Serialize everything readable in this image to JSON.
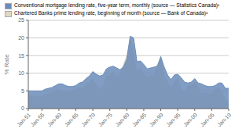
{
  "chart_data": {
    "type": "area",
    "ylabel": "% Rate",
    "x": [
      1951,
      1952,
      1953,
      1954,
      1955,
      1956,
      1957,
      1958,
      1959,
      1960,
      1961,
      1962,
      1963,
      1964,
      1965,
      1966,
      1967,
      1968,
      1969,
      1970,
      1971,
      1972,
      1973,
      1974,
      1975,
      1976,
      1977,
      1978,
      1979,
      1980,
      1981,
      1982,
      1983,
      1984,
      1985,
      1986,
      1987,
      1988,
      1989,
      1990,
      1991,
      1992,
      1993,
      1994,
      1995,
      1996,
      1997,
      1998,
      1999,
      2000,
      2001,
      2002,
      2003,
      2004,
      2005,
      2006,
      2007,
      2008,
      2009,
      2010
    ],
    "series": [
      {
        "name": "Conventional mortgage lending rate, five-year term, monthly (source — Statistics Canada)¹",
        "color": "#6b8cba",
        "values": [
          5.0,
          5.0,
          5.0,
          5.0,
          5.0,
          5.5,
          5.75,
          6.0,
          6.5,
          7.0,
          7.0,
          6.5,
          6.25,
          6.25,
          6.5,
          7.25,
          7.5,
          8.5,
          9.25,
          10.5,
          9.75,
          9.25,
          9.5,
          11.25,
          11.75,
          12.0,
          11.5,
          11.0,
          11.75,
          14.0,
          20.5,
          20.0,
          13.25,
          13.5,
          12.5,
          11.25,
          11.5,
          11.75,
          12.0,
          14.75,
          11.75,
          9.5,
          8.25,
          9.5,
          9.75,
          8.75,
          7.5,
          7.25,
          7.5,
          8.5,
          7.25,
          7.0,
          6.5,
          6.25,
          6.25,
          6.5,
          7.25,
          7.25,
          5.75,
          5.75
        ]
      },
      {
        "name": "Chartered Banks prime lending rate, beginning of month (source — Bank of Canada)²",
        "color": "#e0d8c0",
        "values": [
          4.0,
          3.5,
          3.5,
          3.5,
          3.5,
          4.0,
          4.25,
          4.5,
          5.25,
          5.5,
          5.0,
          5.0,
          5.0,
          5.0,
          5.5,
          6.0,
          5.75,
          6.75,
          7.5,
          8.5,
          6.5,
          5.5,
          6.0,
          9.25,
          9.5,
          10.5,
          9.0,
          9.75,
          12.5,
          15.0,
          19.5,
          15.5,
          10.5,
          11.5,
          10.0,
          9.0,
          9.5,
          9.5,
          12.5,
          14.0,
          9.5,
          7.5,
          6.0,
          7.5,
          8.65,
          5.5,
          4.75,
          6.5,
          6.5,
          7.5,
          6.0,
          4.25,
          4.5,
          4.25,
          4.25,
          5.5,
          6.0,
          4.75,
          2.5,
          2.25
        ]
      }
    ],
    "xlim": [
      1951,
      2010
    ],
    "xticks": [
      {
        "value": 1951,
        "label": "Jan-51"
      },
      {
        "value": 1955,
        "label": "Jan-55"
      },
      {
        "value": 1960,
        "label": "Jan-60"
      },
      {
        "value": 1965,
        "label": "Jan-65"
      },
      {
        "value": 1970,
        "label": "Jan-70"
      },
      {
        "value": 1975,
        "label": "Jan-75"
      },
      {
        "value": 1980,
        "label": "Jan-80"
      },
      {
        "value": 1985,
        "label": "Jan-85"
      },
      {
        "value": 1990,
        "label": "Jan-90"
      },
      {
        "value": 1995,
        "label": "Jan-95"
      },
      {
        "value": 2000,
        "label": "Jan-00"
      },
      {
        "value": 2005,
        "label": "Jan-05"
      },
      {
        "value": 2010,
        "label": "Jan-10"
      }
    ],
    "ylim": [
      0,
      25
    ],
    "yticks": [
      0,
      5,
      10,
      15,
      20,
      25
    ],
    "grid": true,
    "legend": "upper left"
  }
}
